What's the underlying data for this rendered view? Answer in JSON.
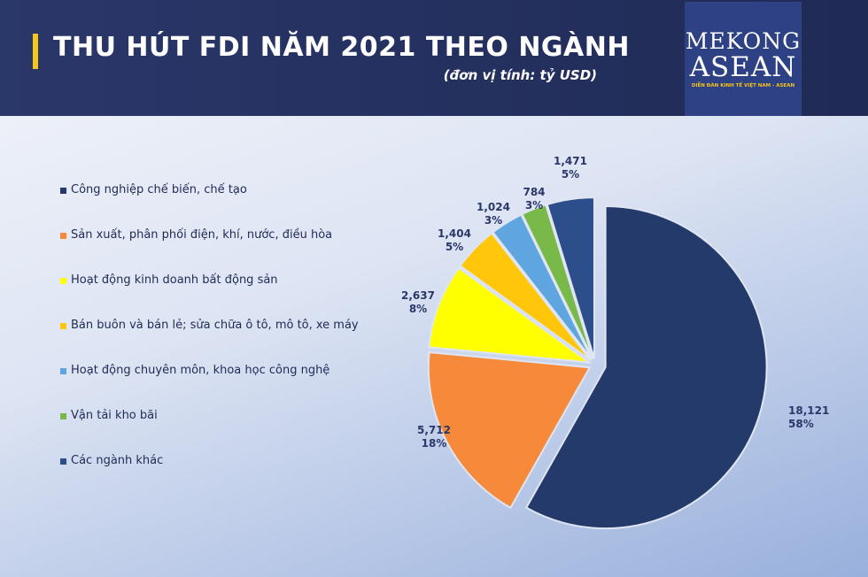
{
  "header": {
    "title": "THU HÚT FDI NĂM 2021 THEO NGÀNH",
    "unit": "(đơn vị tính: tỷ USD)"
  },
  "logo": {
    "line1": "MEKONG",
    "line2": "ASEAN",
    "tagline": "DIỄN ĐÀN KINH TẾ VIỆT NAM - ASEAN"
  },
  "chart_data": {
    "type": "pie",
    "title": "THU HÚT FDI NĂM 2021 THEO NGÀNH",
    "legend_position": "left",
    "categories": [
      "Công nghiệp chế biến, chế tạo",
      "Sản xuất, phân phối điện, khí, nước, điều hòa",
      "Hoạt động kinh doanh bất động sản",
      "Bán buôn và bán lẻ; sửa chữa ô tô, mô tô, xe máy",
      "Hoạt động chuyên môn, khoa học công nghệ",
      "Vận tải kho bãi",
      "Các ngành khác"
    ],
    "values": [
      18.121,
      5.712,
      2.637,
      1.404,
      1.024,
      0.784,
      1.471
    ],
    "value_labels": [
      "18,121",
      "5,712",
      "2,637",
      "1,404",
      "1,024",
      "784",
      "1,471"
    ],
    "percent_labels": [
      "58%",
      "18%",
      "8%",
      "5%",
      "3%",
      "3%",
      "5%"
    ],
    "colors": [
      "#233a6a",
      "#f68a3a",
      "#ffff00",
      "#ffc60a",
      "#5fa6e0",
      "#79b94a",
      "#2c4e8a"
    ]
  }
}
